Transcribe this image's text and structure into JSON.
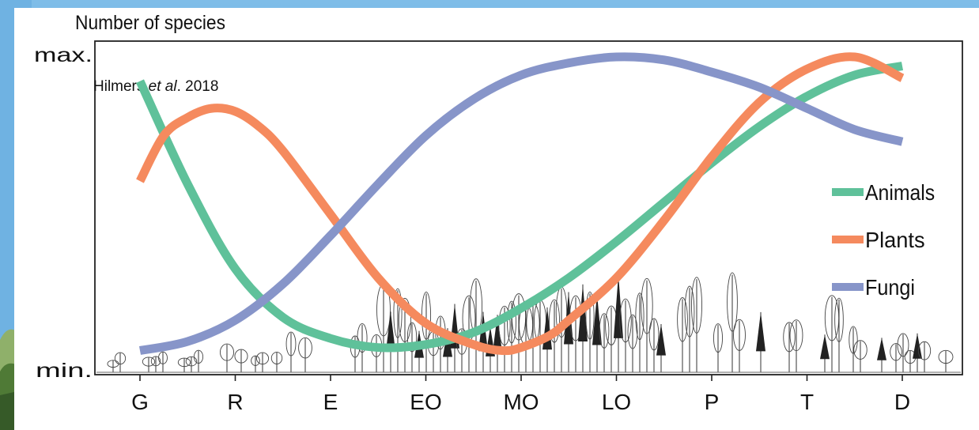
{
  "chart_data": {
    "type": "line",
    "ylabel": "Number of species",
    "y_tick_labels": {
      "max": "max.",
      "min": "min."
    },
    "annotation": {
      "author": "Hilmers ",
      "etal": "et al",
      "year": ". 2018"
    },
    "categories": [
      "G",
      "R",
      "E",
      "EO",
      "MO",
      "LO",
      "P",
      "T",
      "D"
    ],
    "ylim": [
      0,
      1
    ],
    "legend_position": "right",
    "series": [
      {
        "name": "Animals",
        "color": "#5fc19a",
        "x": [
          0,
          0.5,
          1,
          1.5,
          2,
          2.5,
          3,
          3.5,
          4,
          4.5,
          5,
          5.5,
          6,
          6.5,
          7,
          7.5,
          8
        ],
        "values": [
          0.92,
          0.58,
          0.3,
          0.14,
          0.07,
          0.04,
          0.05,
          0.09,
          0.17,
          0.27,
          0.39,
          0.52,
          0.65,
          0.77,
          0.87,
          0.94,
          0.97
        ]
      },
      {
        "name": "Plants",
        "color": "#f58a5e",
        "x": [
          0,
          0.25,
          0.5,
          0.75,
          1,
          1.25,
          1.5,
          2,
          2.5,
          3,
          3.5,
          3.8,
          4,
          4.3,
          4.5,
          5,
          5.5,
          6,
          6.5,
          7,
          7.5,
          8
        ],
        "values": [
          0.59,
          0.74,
          0.8,
          0.83,
          0.82,
          0.77,
          0.69,
          0.48,
          0.27,
          0.12,
          0.05,
          0.03,
          0.04,
          0.08,
          0.13,
          0.27,
          0.46,
          0.67,
          0.85,
          0.96,
          1.0,
          0.93
        ]
      },
      {
        "name": "Fungi",
        "color": "#8795c9",
        "x": [
          0,
          0.5,
          1,
          1.5,
          2,
          2.5,
          3,
          3.5,
          4,
          4.5,
          5,
          5.5,
          6,
          6.5,
          7,
          7.5,
          8
        ],
        "values": [
          0.03,
          0.06,
          0.13,
          0.25,
          0.41,
          0.58,
          0.74,
          0.86,
          0.94,
          0.98,
          1.0,
          0.99,
          0.95,
          0.9,
          0.83,
          0.76,
          0.72
        ]
      }
    ],
    "grid": false
  }
}
